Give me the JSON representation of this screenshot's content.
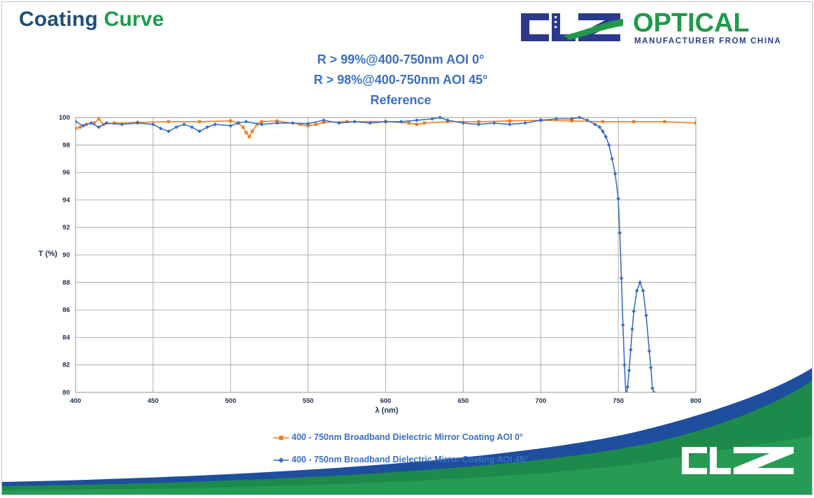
{
  "slide_title": {
    "part1": "Coating",
    "part2": "Curve"
  },
  "logo": {
    "brand": "OPTICAL",
    "tagline": "MANUFACTURER FROM CHINA",
    "mark_text": "CLZ"
  },
  "colors": {
    "title_blue": "#1f4e79",
    "title_green": "#1c9c4a",
    "series_orange": "#f07d22",
    "series_blue": "#3a6fc4",
    "logo_navy": "#2b3a8c",
    "logo_green": "#22994a"
  },
  "chart_data": {
    "type": "line",
    "titles": [
      "R > 99%@400-750nm AOI 0°",
      "R > 98%@400-750nm AOI 45°",
      "Reference"
    ],
    "xlabel": "λ (nm)",
    "ylabel": "T (%)",
    "xlim": [
      400,
      800
    ],
    "ylim": [
      80,
      100
    ],
    "xticks": [
      400,
      450,
      500,
      550,
      600,
      650,
      700,
      750,
      800
    ],
    "yticks": [
      80,
      82,
      84,
      86,
      88,
      90,
      92,
      94,
      96,
      98,
      100
    ],
    "grid": true,
    "legend_position": "bottom",
    "series": [
      {
        "name": "400 - 750nm Broadband Dielectric Mirror Coating  AOI 0°",
        "color": "#f07d22",
        "marker": "square",
        "x": [
          400,
          403,
          407,
          412,
          415,
          418,
          425,
          440,
          460,
          480,
          500,
          505,
          508,
          510,
          512,
          514,
          517,
          520,
          530,
          545,
          550,
          555,
          560,
          575,
          600,
          615,
          620,
          625,
          640,
          660,
          680,
          700,
          720,
          740,
          760,
          780,
          800
        ],
        "y": [
          99.2,
          99.3,
          99.5,
          99.6,
          99.9,
          99.5,
          99.6,
          99.65,
          99.7,
          99.7,
          99.75,
          99.6,
          99.3,
          98.9,
          98.6,
          99.0,
          99.5,
          99.7,
          99.75,
          99.5,
          99.4,
          99.5,
          99.65,
          99.7,
          99.7,
          99.6,
          99.5,
          99.6,
          99.7,
          99.7,
          99.75,
          99.8,
          99.75,
          99.7,
          99.7,
          99.7,
          99.6
        ]
      },
      {
        "name": "400 - 750nm Broadband Dielectric Mirror Coating AOI 45°",
        "color": "#3a6fc4",
        "marker": "diamond",
        "x": [
          400,
          405,
          410,
          415,
          420,
          430,
          440,
          450,
          455,
          460,
          465,
          470,
          475,
          480,
          485,
          490,
          500,
          505,
          510,
          520,
          530,
          540,
          550,
          560,
          570,
          580,
          590,
          600,
          610,
          620,
          630,
          635,
          640,
          650,
          660,
          670,
          680,
          690,
          700,
          710,
          720,
          725,
          730,
          735,
          738,
          740,
          742,
          744,
          746,
          748,
          750,
          751,
          752,
          753,
          754,
          755,
          756,
          757,
          758,
          759,
          760,
          762,
          764,
          766,
          768,
          770,
          771,
          772,
          773
        ],
        "y": [
          99.7,
          99.4,
          99.6,
          99.3,
          99.6,
          99.5,
          99.6,
          99.5,
          99.2,
          99.0,
          99.3,
          99.5,
          99.3,
          99.0,
          99.3,
          99.5,
          99.4,
          99.6,
          99.7,
          99.5,
          99.6,
          99.6,
          99.55,
          99.8,
          99.6,
          99.7,
          99.6,
          99.7,
          99.7,
          99.8,
          99.9,
          100.0,
          99.8,
          99.6,
          99.5,
          99.6,
          99.5,
          99.6,
          99.8,
          99.9,
          99.9,
          100.0,
          99.8,
          99.5,
          99.3,
          99.0,
          98.6,
          98.0,
          97.0,
          95.9,
          94.1,
          91.6,
          88.3,
          84.9,
          82.0,
          79.6,
          80.4,
          81.6,
          83.1,
          84.6,
          85.9,
          87.4,
          88.0,
          87.4,
          85.6,
          83.0,
          81.8,
          80.3,
          80.0
        ]
      }
    ]
  }
}
